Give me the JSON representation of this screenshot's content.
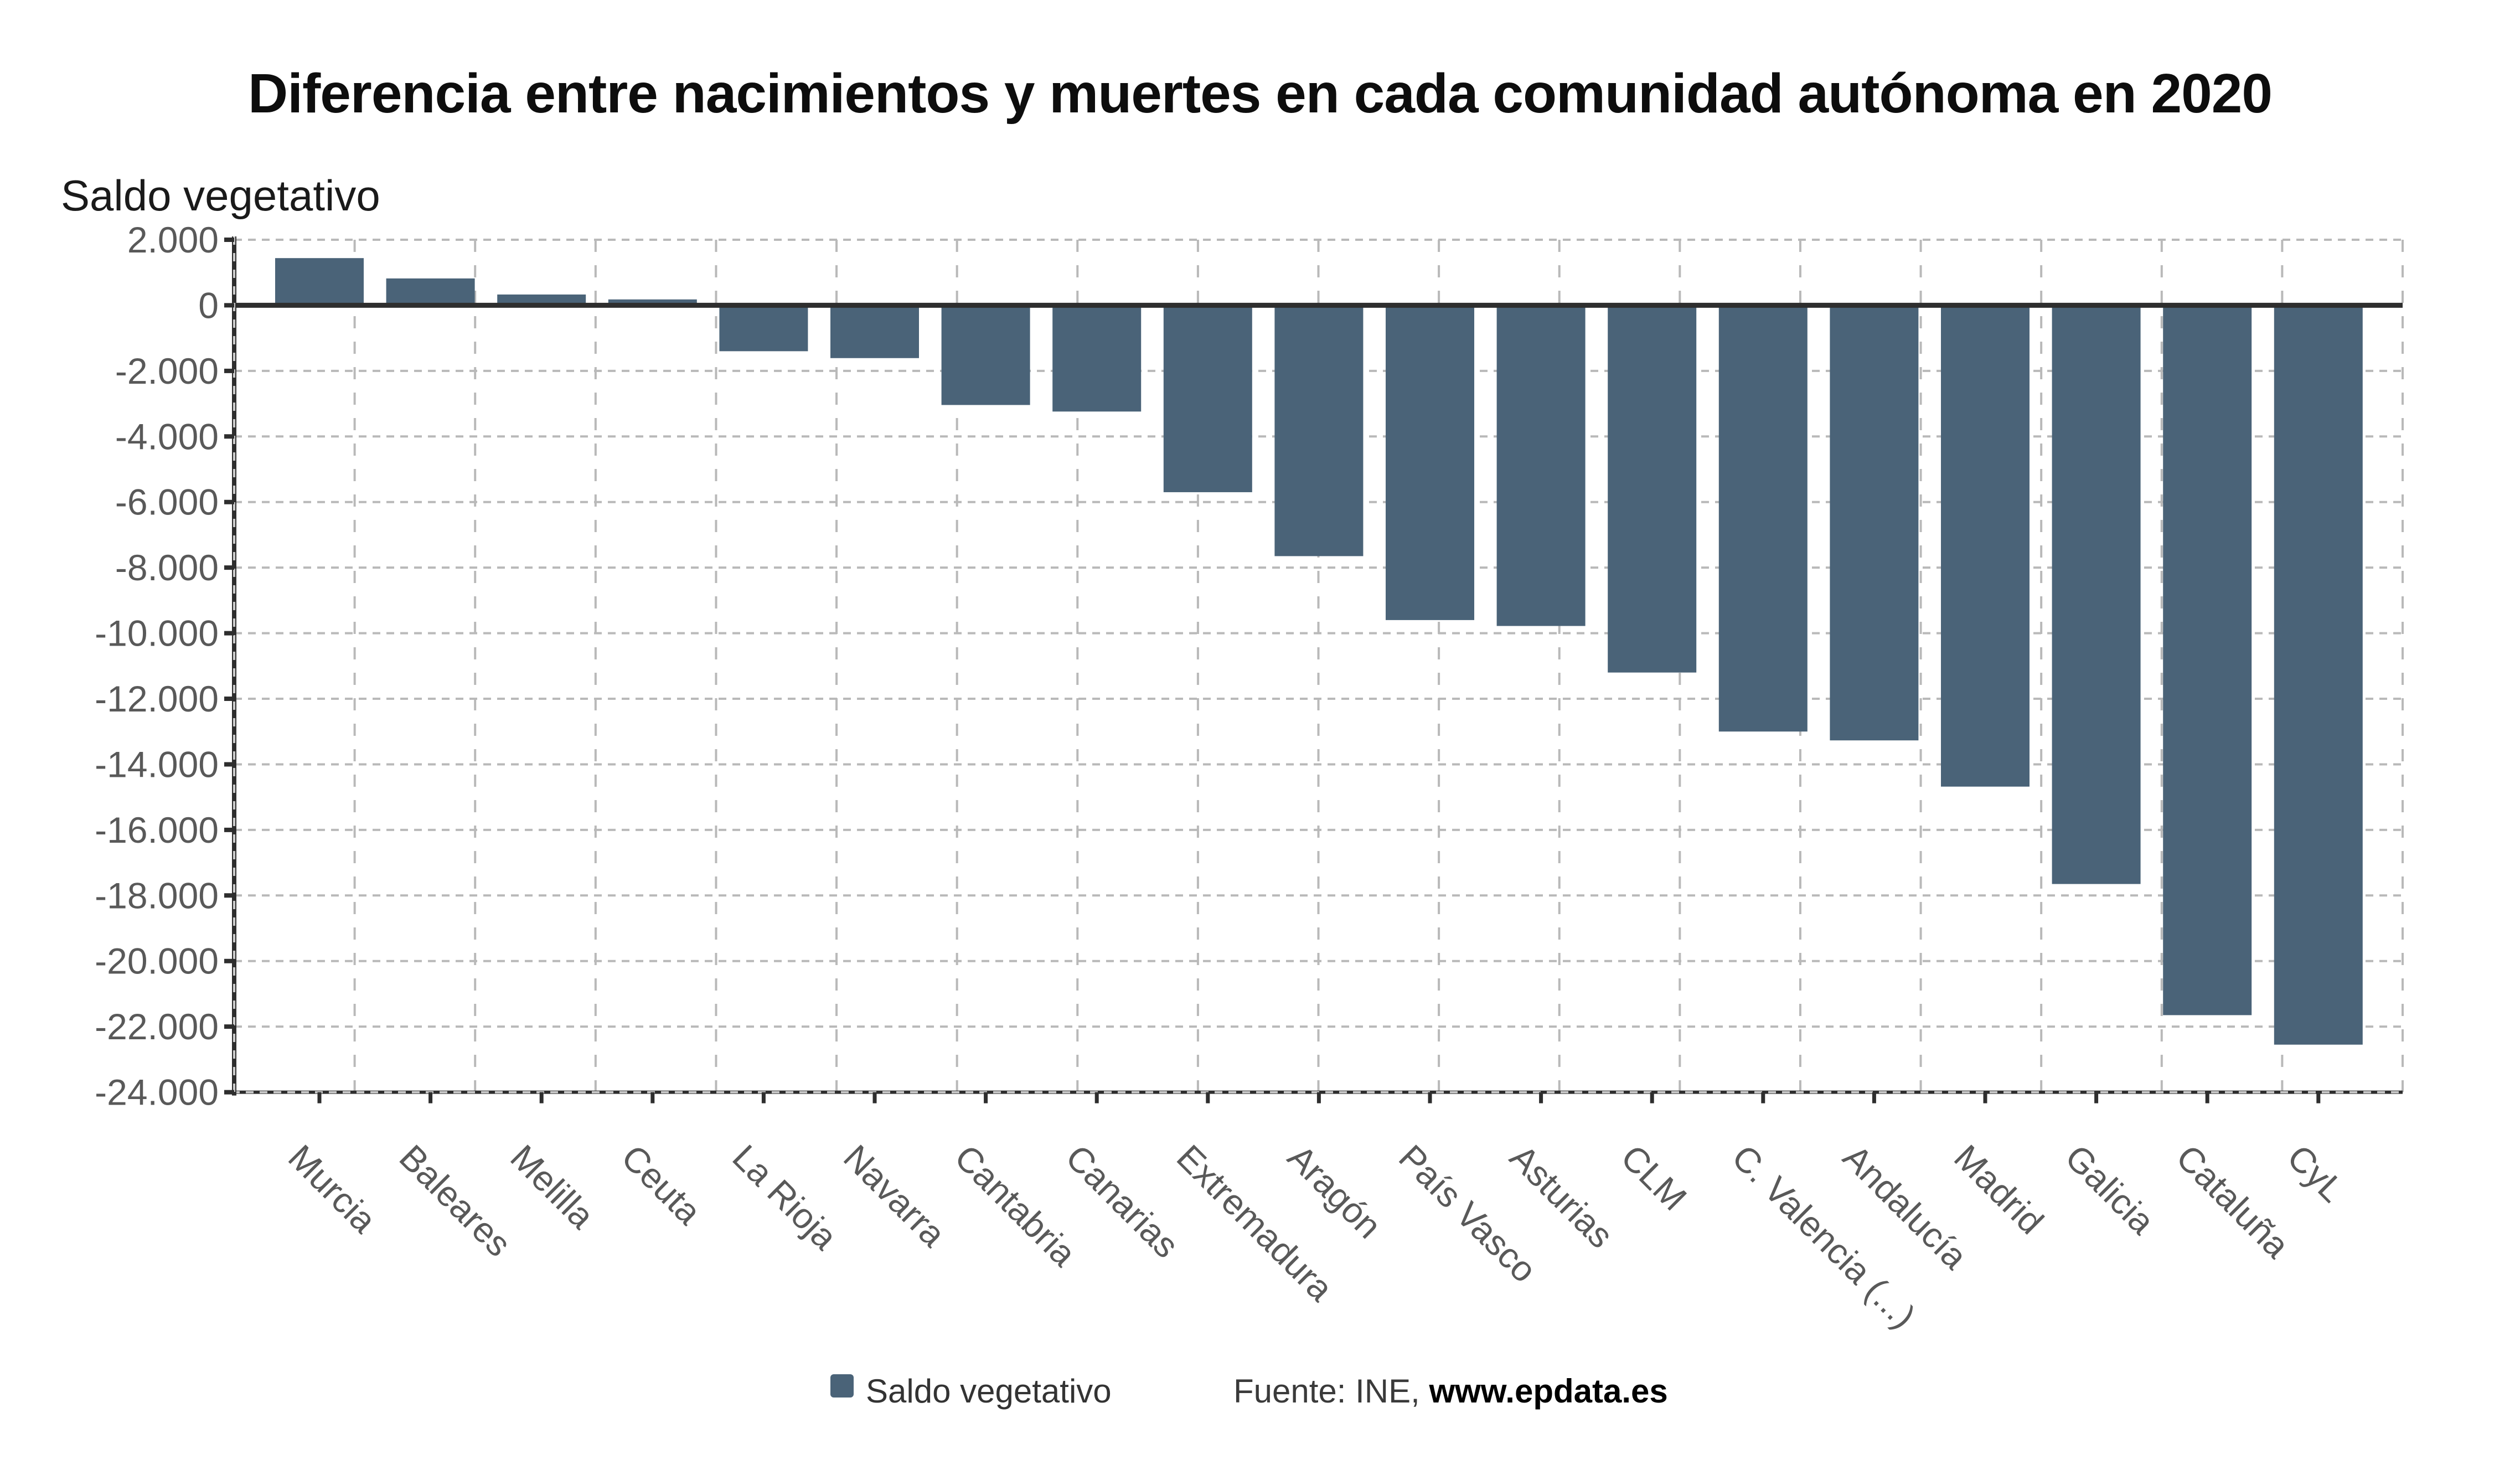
{
  "title": "Diferencia entre nacimientos y muertes en cada comunidad autónoma en 2020",
  "y_axis": {
    "title": "Saldo vegetativo",
    "tick_labels": [
      "2.000",
      "0",
      "-2.000",
      "-4.000",
      "-6.000",
      "-8.000",
      "-10.000",
      "-12.000",
      "-14.000",
      "-16.000",
      "-18.000",
      "-20.000",
      "-22.000",
      "-24.000"
    ]
  },
  "legend": {
    "label": "Saldo vegetativo"
  },
  "source": {
    "prefix": "Fuente: INE, ",
    "site": "www.epdata.es"
  },
  "colors": {
    "bar": "#4a6378",
    "grid": "#b9b9b9",
    "axis": "#2e2e2e",
    "zero_line": "#2e2e2e",
    "tick_label": "#595959",
    "axis_dash_overlay": "#cccccc"
  },
  "chart_data": {
    "type": "bar",
    "title": "Diferencia entre nacimientos y muertes en cada comunidad autónoma en 2020",
    "xlabel": "",
    "ylabel": "Saldo vegetativo",
    "series_name": "Saldo vegetativo",
    "categories": [
      "Murcia",
      "Baleares",
      "Melilla",
      "Ceuta",
      "La Rioja",
      "Navarra",
      "Cantabria",
      "Canarias",
      "Extremadura",
      "Aragón",
      "País Vasco",
      "Asturias",
      "CLM",
      "C. Valencia (...)",
      "Andalucía",
      "Madrid",
      "Galicia",
      "Cataluña",
      "CyL"
    ],
    "values": [
      1440,
      820,
      330,
      180,
      -1400,
      -1610,
      -3040,
      -3240,
      -5700,
      -7650,
      -9600,
      -9780,
      -11200,
      -13000,
      -13270,
      -14680,
      -17650,
      -21650,
      -22550
    ],
    "ylim": [
      -24000,
      2000
    ],
    "ytick_interval": 2000,
    "grid": "dashed",
    "legend_position": "bottom",
    "source_text": "Fuente: INE, www.epdata.es"
  }
}
